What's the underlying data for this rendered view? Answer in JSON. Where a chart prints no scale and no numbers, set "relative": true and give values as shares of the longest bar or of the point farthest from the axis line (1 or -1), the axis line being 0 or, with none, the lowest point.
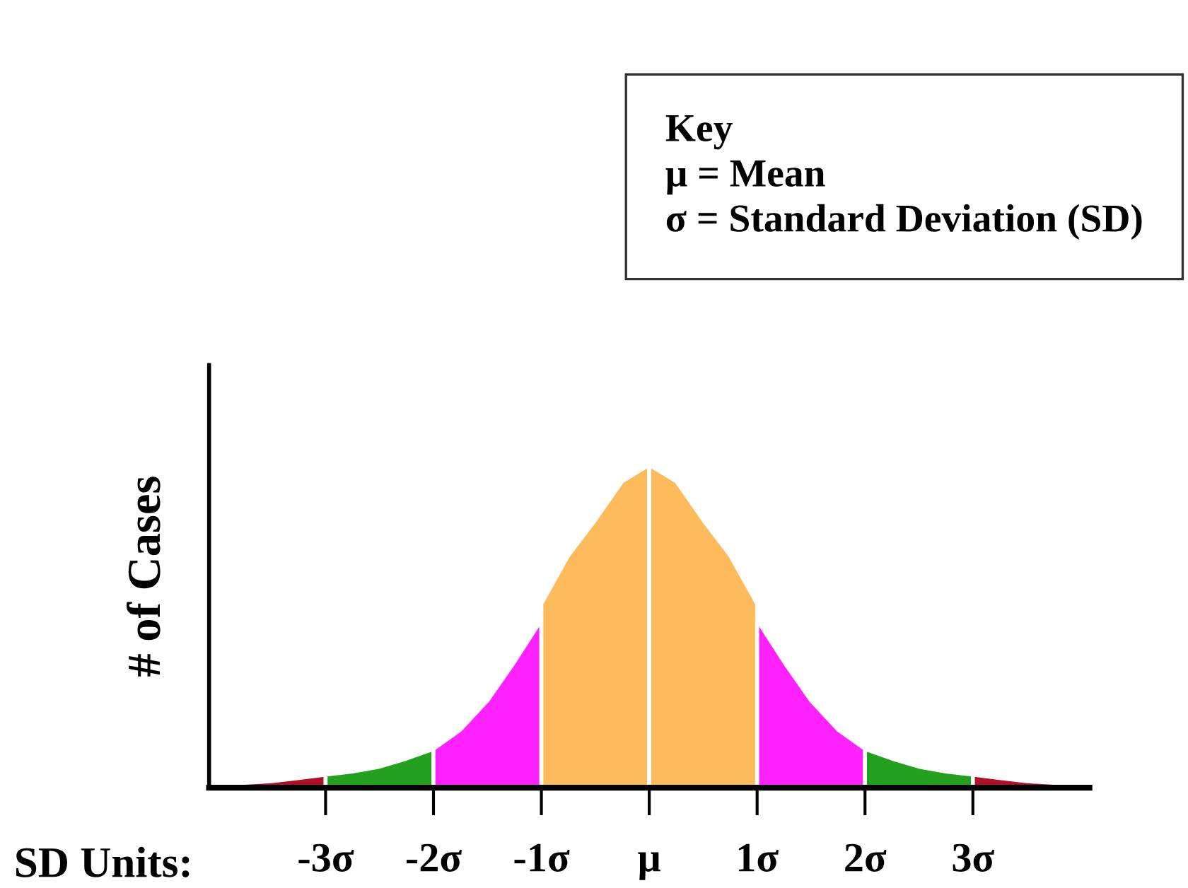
{
  "chart_data": {
    "type": "area",
    "relative": true,
    "ylabel": "# of Cases",
    "xlabel": "SD Units:",
    "annotations": [
      "Key",
      "μ = Mean",
      "σ = Standard Deviation (SD)"
    ],
    "xlim": [
      -4.08,
      4.08
    ],
    "xticks": [
      {
        "value": -3,
        "label": "-3σ"
      },
      {
        "value": -2,
        "label": "-2σ"
      },
      {
        "value": -1,
        "label": "-1σ"
      },
      {
        "value": 0,
        "label": "μ"
      },
      {
        "value": 1,
        "label": "1σ"
      },
      {
        "value": 2,
        "label": "2σ"
      },
      {
        "value": 3,
        "label": "3σ"
      }
    ],
    "tick_labels": "x",
    "legend": false,
    "grid": false,
    "series": [
      {
        "color": "#b0102a",
        "x": [
          -4.08,
          -3.75,
          -3.5,
          -3.25,
          -3
        ],
        "values": [
          0.01,
          0.015,
          0.02,
          0.03,
          0.04
        ]
      },
      {
        "color": "#22a01e",
        "x": [
          -3,
          -2.75,
          -2.5,
          -2.25,
          -2
        ],
        "values": [
          0.04,
          0.05,
          0.065,
          0.09,
          0.12
        ]
      },
      {
        "color": "#ff22ff",
        "x": [
          -2,
          -1.75,
          -1.5,
          -1.25,
          -1
        ],
        "values": [
          0.12,
          0.18,
          0.27,
          0.39,
          0.52
        ]
      },
      {
        "color": "#fdbb5c",
        "x": [
          -1,
          -0.75,
          -0.5,
          -0.25,
          0
        ],
        "values": [
          0.57,
          0.72,
          0.83,
          0.95,
          1.0
        ]
      },
      {
        "color": "#fdbb5c",
        "x": [
          0,
          0.25,
          0.5,
          0.75,
          1
        ],
        "values": [
          1.0,
          0.95,
          0.83,
          0.72,
          0.57
        ]
      },
      {
        "color": "#ff22ff",
        "x": [
          1,
          1.25,
          1.5,
          1.75,
          2
        ],
        "values": [
          0.52,
          0.39,
          0.27,
          0.18,
          0.12
        ]
      },
      {
        "color": "#22a01e",
        "x": [
          2,
          2.25,
          2.5,
          2.75,
          3
        ],
        "values": [
          0.12,
          0.09,
          0.065,
          0.05,
          0.04
        ]
      },
      {
        "color": "#b0102a",
        "x": [
          3,
          3.25,
          3.5,
          3.75,
          4.08
        ],
        "values": [
          0.04,
          0.03,
          0.02,
          0.015,
          0.01
        ]
      }
    ]
  }
}
